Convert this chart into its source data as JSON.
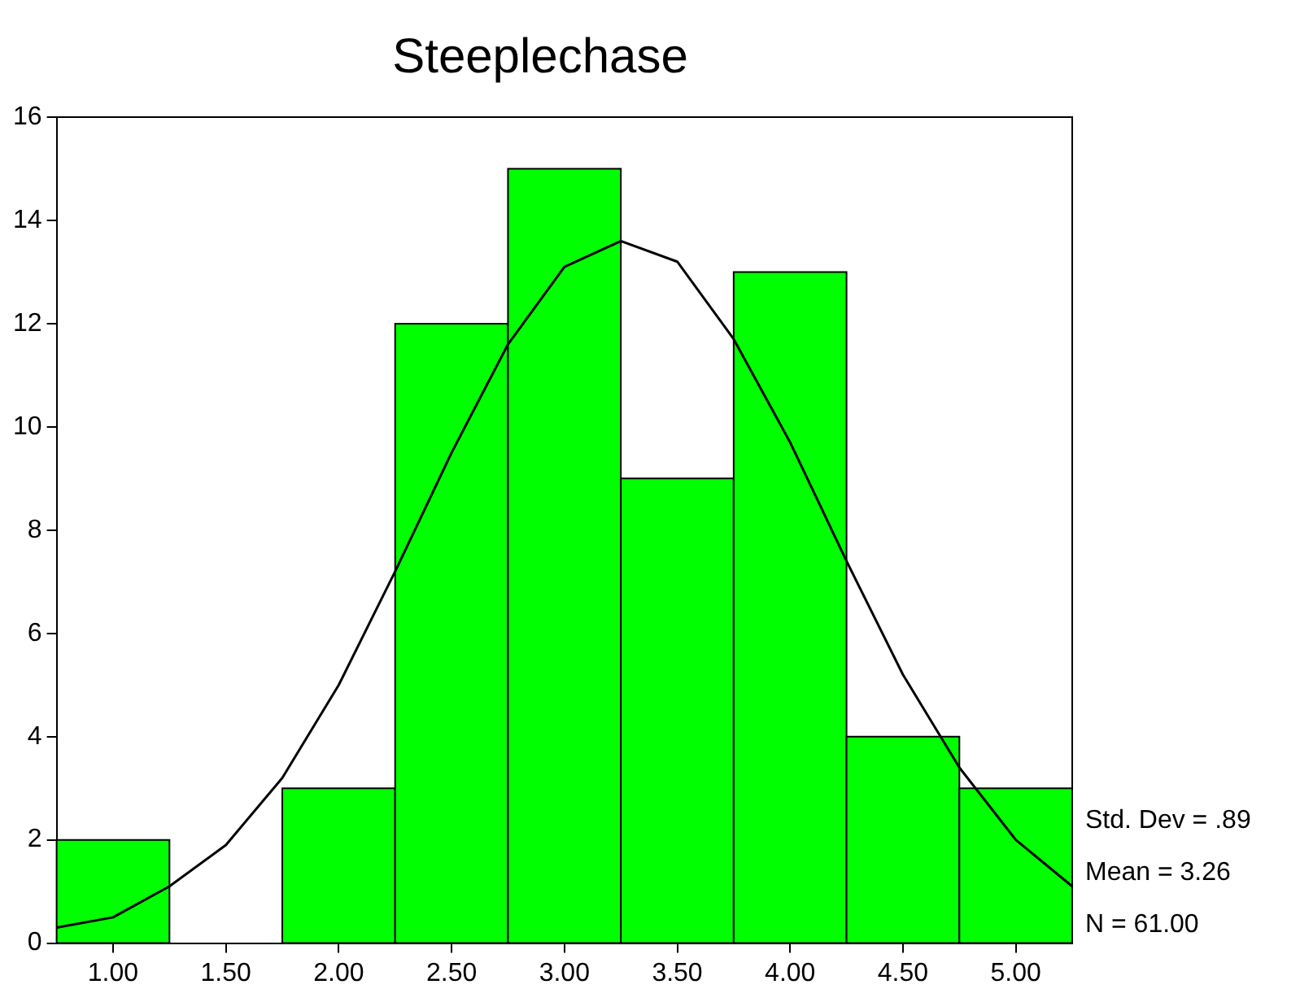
{
  "chart_data": {
    "type": "histogram",
    "title": "Steeplechase",
    "bins": [
      0.75,
      1.25,
      1.75,
      2.25,
      2.75,
      3.25,
      3.75,
      4.25,
      4.75,
      5.25
    ],
    "values": [
      2,
      0,
      3,
      12,
      15,
      9,
      13,
      4,
      3
    ],
    "color": "#00ff00",
    "series": [
      {
        "type": "line",
        "color": "#000000",
        "x": [
          0.75,
          1.0,
          1.25,
          1.5,
          1.75,
          2.0,
          2.25,
          2.5,
          2.75,
          3.0,
          3.25,
          3.5,
          3.75,
          4.0,
          4.25,
          4.5,
          4.75,
          5.0,
          5.25
        ],
        "values": [
          0.3,
          0.5,
          1.1,
          1.9,
          3.2,
          5.0,
          7.2,
          9.5,
          11.6,
          13.1,
          13.6,
          13.2,
          11.7,
          9.7,
          7.4,
          5.2,
          3.4,
          2.0,
          1.1
        ]
      }
    ],
    "xlim": [
      0.75,
      5.25
    ],
    "xticks": [
      {
        "value": 1,
        "label": "1.00"
      },
      {
        "value": 1.5,
        "label": "1.50"
      },
      {
        "value": 2,
        "label": "2.00"
      },
      {
        "value": 2.5,
        "label": "2.50"
      },
      {
        "value": 3,
        "label": "3.00"
      },
      {
        "value": 3.5,
        "label": "3.50"
      },
      {
        "value": 4,
        "label": "4.00"
      },
      {
        "value": 4.5,
        "label": "4.50"
      },
      {
        "value": 5,
        "label": "5.00"
      }
    ],
    "ylim": [
      0,
      16
    ],
    "yticks": [
      0,
      2,
      4,
      6,
      8,
      10,
      12,
      14,
      16
    ],
    "grid": false,
    "legend": false,
    "marker": "none",
    "annotations": [
      "Std. Dev = .89",
      "Mean = 3.26",
      "N = 61.00"
    ]
  }
}
